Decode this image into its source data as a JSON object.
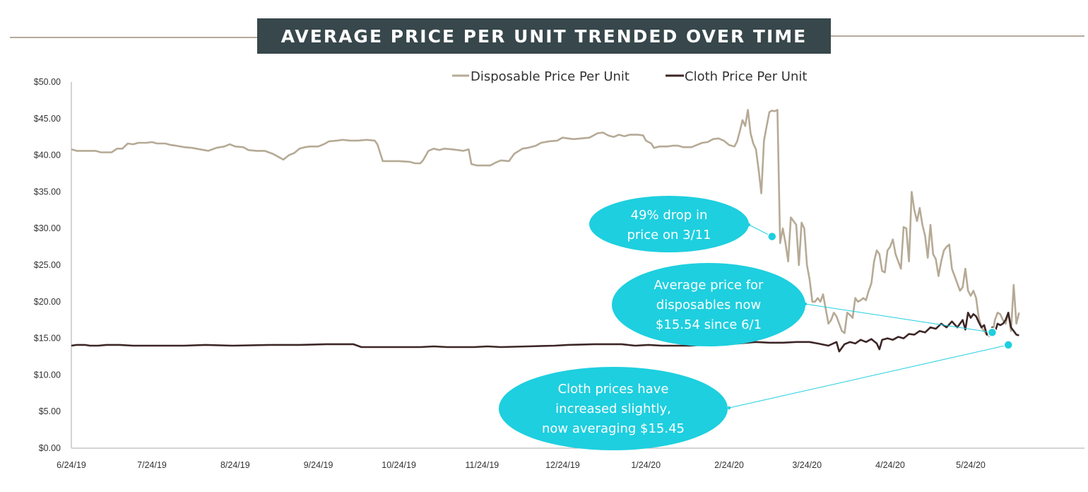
{
  "chart_data": {
    "type": "line",
    "title": "AVERAGE PRICE PER UNIT TRENDED OVER TIME",
    "xlabel": "",
    "ylabel": "",
    "ylim": [
      0,
      50
    ],
    "y_ticks": [
      "$0.00",
      "$5.00",
      "$10.00",
      "$15.00",
      "$20.00",
      "$25.00",
      "$30.00",
      "$35.00",
      "$40.00",
      "$45.00",
      "$50.00"
    ],
    "x_ticks": [
      "6/24/19",
      "7/24/19",
      "8/24/19",
      "9/24/19",
      "10/24/19",
      "11/24/19",
      "12/24/19",
      "1/24/20",
      "2/24/20",
      "3/24/20",
      "4/24/20",
      "5/24/20"
    ],
    "x_range_days": [
      0,
      353
    ],
    "legend_position": "top-right",
    "grid": false,
    "series": [
      {
        "name": "Disposable Price Per Unit",
        "color": "#b6aa96",
        "points": [
          [
            0,
            40.8
          ],
          [
            2,
            40.6
          ],
          [
            6,
            40.6
          ],
          [
            9,
            40.6
          ],
          [
            11,
            40.4
          ],
          [
            15,
            40.4
          ],
          [
            17,
            40.9
          ],
          [
            19,
            40.9
          ],
          [
            21,
            41.6
          ],
          [
            23,
            41.5
          ],
          [
            25,
            41.7
          ],
          [
            28,
            41.7
          ],
          [
            30,
            41.8
          ],
          [
            32,
            41.6
          ],
          [
            35,
            41.6
          ],
          [
            37,
            41.4
          ],
          [
            39,
            41.3
          ],
          [
            42,
            41.1
          ],
          [
            45,
            41.0
          ],
          [
            48,
            40.8
          ],
          [
            51,
            40.6
          ],
          [
            54,
            41.0
          ],
          [
            57,
            41.2
          ],
          [
            59,
            41.5
          ],
          [
            61,
            41.2
          ],
          [
            64,
            41.1
          ],
          [
            66,
            40.7
          ],
          [
            69,
            40.6
          ],
          [
            72,
            40.6
          ],
          [
            75,
            40.2
          ],
          [
            77,
            39.8
          ],
          [
            79,
            39.4
          ],
          [
            81,
            40.0
          ],
          [
            83,
            40.3
          ],
          [
            85,
            40.9
          ],
          [
            87,
            41.1
          ],
          [
            89,
            41.2
          ],
          [
            92,
            41.2
          ],
          [
            94,
            41.5
          ],
          [
            96,
            41.9
          ],
          [
            99,
            42.0
          ],
          [
            101,
            42.1
          ],
          [
            104,
            42.0
          ],
          [
            107,
            42.0
          ],
          [
            110,
            42.1
          ],
          [
            113,
            42.0
          ],
          [
            114,
            41.5
          ],
          [
            116,
            39.2
          ],
          [
            119,
            39.2
          ],
          [
            122,
            39.2
          ],
          [
            126,
            39.1
          ],
          [
            128,
            38.9
          ],
          [
            130,
            38.9
          ],
          [
            131,
            39.3
          ],
          [
            133,
            40.6
          ],
          [
            135,
            40.9
          ],
          [
            137,
            40.7
          ],
          [
            139,
            40.9
          ],
          [
            142,
            40.8
          ],
          [
            144,
            40.7
          ],
          [
            146,
            40.6
          ],
          [
            148,
            40.8
          ],
          [
            149,
            38.8
          ],
          [
            151,
            38.6
          ],
          [
            153,
            38.6
          ],
          [
            156,
            38.6
          ],
          [
            158,
            39.0
          ],
          [
            160,
            39.3
          ],
          [
            163,
            39.2
          ],
          [
            165,
            40.2
          ],
          [
            168,
            40.9
          ],
          [
            170,
            41.0
          ],
          [
            173,
            41.3
          ],
          [
            175,
            41.7
          ],
          [
            178,
            41.9
          ],
          [
            181,
            42.0
          ],
          [
            183,
            42.4
          ],
          [
            185,
            42.3
          ],
          [
            187,
            42.2
          ],
          [
            190,
            42.3
          ],
          [
            193,
            42.4
          ],
          [
            196,
            43.0
          ],
          [
            198,
            43.1
          ],
          [
            200,
            42.7
          ],
          [
            202,
            42.5
          ],
          [
            204,
            42.8
          ],
          [
            206,
            42.6
          ],
          [
            208,
            42.8
          ],
          [
            211,
            42.8
          ],
          [
            213,
            42.7
          ],
          [
            214,
            42.0
          ],
          [
            216,
            41.6
          ],
          [
            217,
            41.0
          ],
          [
            219,
            41.2
          ],
          [
            222,
            41.2
          ],
          [
            224,
            41.3
          ],
          [
            226,
            41.3
          ],
          [
            228,
            41.1
          ],
          [
            231,
            41.1
          ],
          [
            233,
            41.4
          ],
          [
            235,
            41.7
          ],
          [
            237,
            41.8
          ],
          [
            239,
            42.2
          ],
          [
            241,
            42.3
          ],
          [
            243,
            42.0
          ],
          [
            245,
            41.4
          ],
          [
            247,
            41.2
          ],
          [
            248,
            41.9
          ],
          [
            249,
            43.3
          ],
          [
            250,
            44.8
          ],
          [
            251,
            44.0
          ],
          [
            252,
            46.2
          ],
          [
            253,
            43.0
          ],
          [
            254,
            41.6
          ],
          [
            255,
            40.8
          ],
          [
            256,
            38.0
          ],
          [
            257,
            34.8
          ],
          [
            258,
            42.0
          ],
          [
            259,
            44.0
          ],
          [
            260,
            45.9
          ],
          [
            261,
            46.1
          ],
          [
            262,
            46.0
          ],
          [
            263,
            46.2
          ],
          [
            264,
            28.0
          ],
          [
            265,
            30.0
          ],
          [
            266,
            28.0
          ],
          [
            267,
            25.5
          ],
          [
            268,
            31.5
          ],
          [
            269,
            31.0
          ],
          [
            270,
            30.5
          ],
          [
            271,
            25.0
          ],
          [
            272,
            30.8
          ],
          [
            273,
            30.0
          ],
          [
            274,
            25.0
          ],
          [
            275,
            23.0
          ],
          [
            276,
            20.0
          ],
          [
            277,
            20.0
          ],
          [
            278,
            20.5
          ],
          [
            279,
            20.0
          ],
          [
            280,
            21.0
          ],
          [
            281,
            19.0
          ],
          [
            282,
            17.0
          ],
          [
            283,
            17.5
          ],
          [
            284,
            18.5
          ],
          [
            285,
            18.0
          ],
          [
            286,
            17.0
          ],
          [
            287,
            16.0
          ],
          [
            288,
            15.7
          ],
          [
            289,
            18.5
          ],
          [
            290,
            18.2
          ],
          [
            291,
            17.8
          ],
          [
            292,
            20.5
          ],
          [
            293,
            20.0
          ],
          [
            294,
            20.2
          ],
          [
            295,
            20.5
          ],
          [
            296,
            20.2
          ],
          [
            297,
            21.5
          ],
          [
            298,
            22.5
          ],
          [
            299,
            25.5
          ],
          [
            300,
            27.0
          ],
          [
            301,
            26.5
          ],
          [
            302,
            24.2
          ],
          [
            303,
            24.0
          ],
          [
            304,
            27.0
          ],
          [
            305,
            27.5
          ],
          [
            306,
            28.5
          ],
          [
            307,
            26.5
          ],
          [
            308,
            25.5
          ],
          [
            309,
            24.5
          ],
          [
            310,
            30.2
          ],
          [
            311,
            30.0
          ],
          [
            312,
            25.5
          ],
          [
            313,
            35.0
          ],
          [
            314,
            32.5
          ],
          [
            315,
            31.0
          ],
          [
            316,
            32.8
          ],
          [
            317,
            30.5
          ],
          [
            318,
            29.0
          ],
          [
            319,
            26.0
          ],
          [
            320,
            30.5
          ],
          [
            321,
            26.5
          ],
          [
            322,
            25.8
          ],
          [
            323,
            23.5
          ],
          [
            324,
            25.5
          ],
          [
            325,
            27.0
          ],
          [
            326,
            27.5
          ],
          [
            327,
            27.8
          ],
          [
            328,
            24.5
          ],
          [
            329,
            23.5
          ],
          [
            330,
            22.5
          ],
          [
            331,
            21.5
          ],
          [
            332,
            22.0
          ],
          [
            333,
            24.5
          ],
          [
            334,
            21.5
          ],
          [
            335,
            20.8
          ],
          [
            336,
            21.5
          ],
          [
            337,
            20.5
          ],
          [
            338,
            17.8
          ],
          [
            339,
            16.5
          ],
          [
            340,
            16.0
          ],
          [
            341,
            15.5
          ],
          [
            342,
            15.3
          ],
          [
            343,
            15.3
          ],
          [
            344,
            17.5
          ],
          [
            345,
            18.5
          ],
          [
            346,
            18.3
          ],
          [
            347,
            17.5
          ],
          [
            348,
            17.0
          ],
          [
            349,
            18.5
          ],
          [
            350,
            16.0
          ],
          [
            351,
            22.3
          ],
          [
            352,
            17.0
          ],
          [
            353,
            18.5
          ]
        ]
      },
      {
        "name": "Cloth Price Per Unit",
        "color": "#3d2626",
        "points": [
          [
            0,
            14.0
          ],
          [
            2,
            14.1
          ],
          [
            5,
            14.1
          ],
          [
            7,
            14.0
          ],
          [
            10,
            14.0
          ],
          [
            13,
            14.1
          ],
          [
            18,
            14.1
          ],
          [
            23,
            14.0
          ],
          [
            30,
            14.0
          ],
          [
            42,
            14.0
          ],
          [
            50,
            14.1
          ],
          [
            60,
            14.0
          ],
          [
            75,
            14.1
          ],
          [
            85,
            14.1
          ],
          [
            95,
            14.2
          ],
          [
            105,
            14.2
          ],
          [
            108,
            13.8
          ],
          [
            118,
            13.8
          ],
          [
            130,
            13.8
          ],
          [
            135,
            13.9
          ],
          [
            140,
            13.8
          ],
          [
            150,
            13.8
          ],
          [
            155,
            13.9
          ],
          [
            160,
            13.8
          ],
          [
            170,
            13.9
          ],
          [
            180,
            14.0
          ],
          [
            185,
            14.1
          ],
          [
            195,
            14.2
          ],
          [
            205,
            14.2
          ],
          [
            210,
            14.0
          ],
          [
            215,
            14.1
          ],
          [
            220,
            14.0
          ],
          [
            230,
            14.0
          ],
          [
            240,
            14.2
          ],
          [
            248,
            14.3
          ],
          [
            255,
            14.5
          ],
          [
            260,
            14.4
          ],
          [
            265,
            14.4
          ],
          [
            270,
            14.5
          ],
          [
            275,
            14.5
          ],
          [
            278,
            14.3
          ],
          [
            282,
            14.0
          ],
          [
            285,
            14.5
          ],
          [
            286,
            13.2
          ],
          [
            288,
            14.2
          ],
          [
            290,
            14.5
          ],
          [
            292,
            14.3
          ],
          [
            294,
            14.8
          ],
          [
            296,
            14.5
          ],
          [
            298,
            14.9
          ],
          [
            300,
            14.3
          ],
          [
            301,
            13.5
          ],
          [
            302,
            14.8
          ],
          [
            304,
            15.0
          ],
          [
            306,
            14.8
          ],
          [
            308,
            15.2
          ],
          [
            310,
            15.0
          ],
          [
            312,
            15.6
          ],
          [
            314,
            15.5
          ],
          [
            316,
            16.0
          ],
          [
            318,
            15.8
          ],
          [
            320,
            16.5
          ],
          [
            322,
            16.3
          ],
          [
            324,
            17.0
          ],
          [
            326,
            16.5
          ],
          [
            328,
            17.3
          ],
          [
            330,
            16.5
          ],
          [
            332,
            17.5
          ],
          [
            333,
            16.2
          ],
          [
            334,
            18.5
          ],
          [
            335,
            17.8
          ],
          [
            336,
            18.3
          ],
          [
            337,
            18.0
          ],
          [
            338,
            17.2
          ],
          [
            339,
            16.5
          ],
          [
            340,
            16.8
          ],
          [
            341,
            15.5
          ],
          [
            342,
            15.8
          ],
          [
            343,
            16.5
          ],
          [
            344,
            15.8
          ],
          [
            345,
            17.0
          ],
          [
            346,
            16.8
          ],
          [
            347,
            17.0
          ],
          [
            348,
            17.5
          ],
          [
            349,
            18.5
          ],
          [
            350,
            16.5
          ],
          [
            351,
            16.0
          ],
          [
            352,
            15.5
          ],
          [
            353,
            15.4
          ]
        ]
      }
    ],
    "annotations": [
      {
        "text": [
          "49% drop in",
          "price on 3/11"
        ],
        "target": [
          261,
          28.9
        ]
      },
      {
        "text": [
          "Average price for",
          "disposables now",
          "$15.54 since 6/1"
        ],
        "target": [
          343,
          15.8
        ]
      },
      {
        "text": [
          "Cloth prices have",
          "increased slightly,",
          "now averaging $15.45"
        ],
        "target": [
          349,
          14.1
        ]
      }
    ]
  },
  "legend": {
    "disposable_label": "Disposable Price Per Unit",
    "cloth_label": "Cloth Price Per Unit"
  },
  "colors": {
    "banner": "#37474b",
    "callout": "#1ecfdf",
    "axis": "#aaaaaa"
  }
}
